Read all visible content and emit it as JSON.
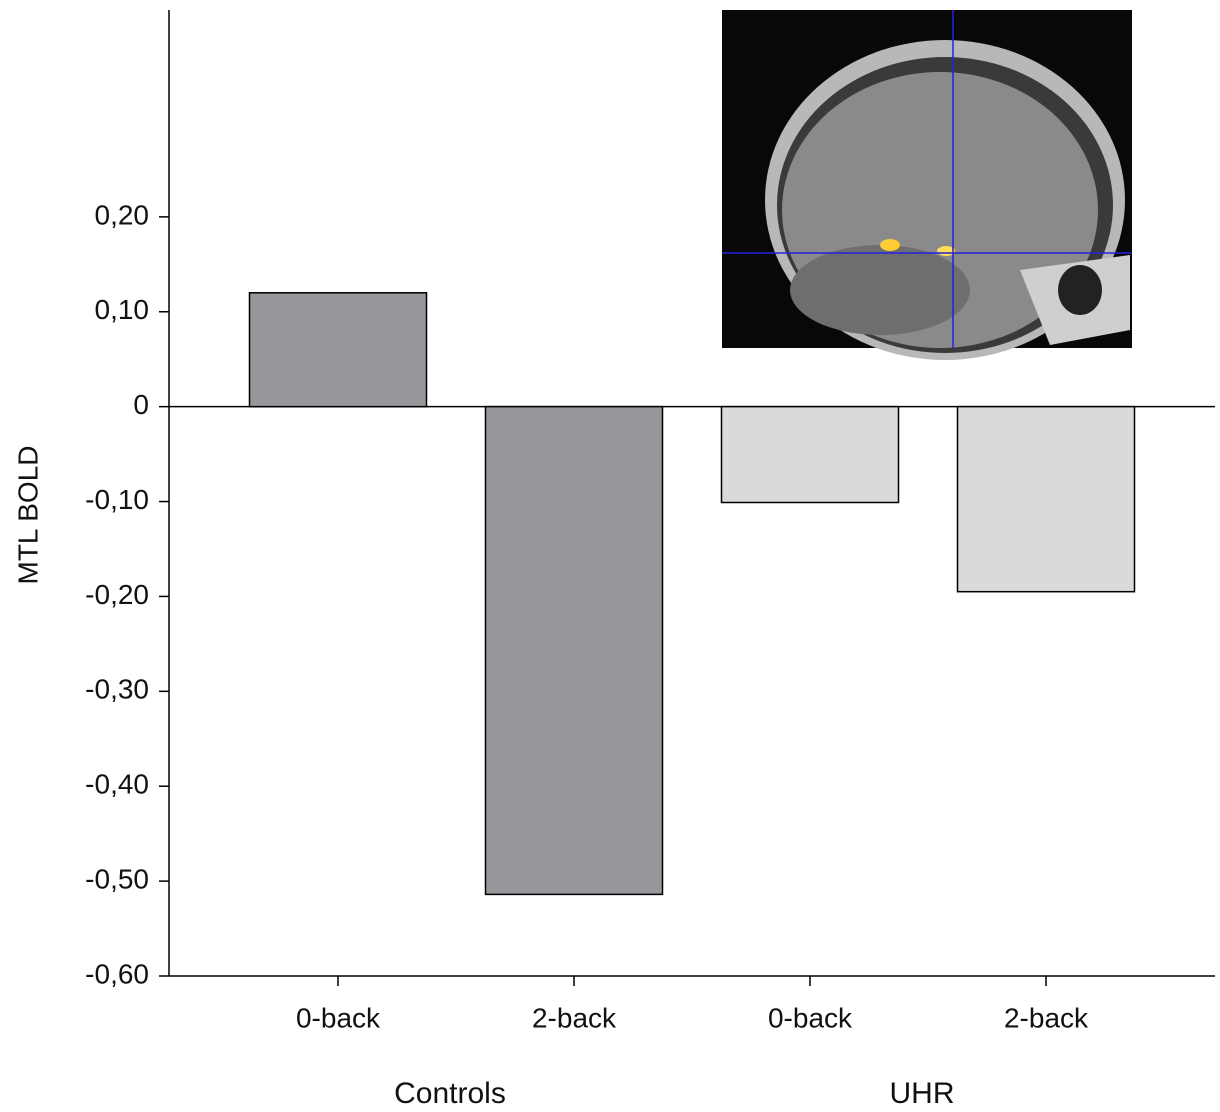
{
  "chart_data": {
    "type": "bar",
    "y_label": "MTL BOLD",
    "categories": [
      "0-back",
      "2-back",
      "0-back",
      "2-back"
    ],
    "groups": [
      "Controls",
      "UHR"
    ],
    "values": [
      0.12,
      -0.514,
      -0.101,
      -0.195
    ],
    "colors": [
      "#96979b",
      "#96979b",
      "#dadada",
      "#dadada"
    ],
    "ylim": [
      -0.6,
      0.418
    ],
    "yticks": [
      {
        "value": -0.6,
        "label": "-0,60"
      },
      {
        "value": -0.5,
        "label": "-0,50"
      },
      {
        "value": -0.4,
        "label": "-0,40"
      },
      {
        "value": -0.3,
        "label": "-0,30"
      },
      {
        "value": -0.2,
        "label": "-0,20"
      },
      {
        "value": -0.1,
        "label": "-0,10"
      },
      0,
      {
        "value": 0.1,
        "label": "0,10"
      },
      {
        "value": 0.2,
        "label": "0,20"
      }
    ]
  }
}
